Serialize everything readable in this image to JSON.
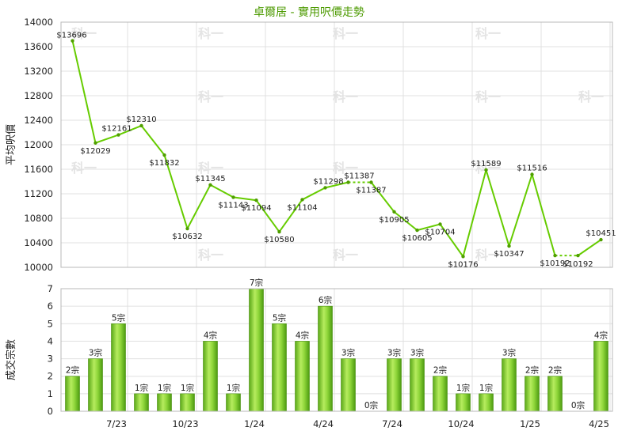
{
  "title": "卓爾居 - 實用呎價走勢",
  "chart_data": [
    {
      "type": "line",
      "ylabel": "平均呎價",
      "ylim": [
        10000,
        14000
      ],
      "yticks": [
        10000,
        10400,
        10800,
        11200,
        11600,
        12000,
        12400,
        12800,
        13200,
        13600,
        14000
      ],
      "points": [
        {
          "value": 13696,
          "label": "$13696"
        },
        {
          "value": 12029,
          "label": "$12029"
        },
        {
          "value": 12161,
          "label": "$12161"
        },
        {
          "value": 12310,
          "label": "$12310"
        },
        {
          "value": 11832,
          "label": "$11832"
        },
        {
          "value": 10632,
          "label": "$10632"
        },
        {
          "value": 11345,
          "label": "$11345"
        },
        {
          "value": 11143,
          "label": "$11143"
        },
        {
          "value": 11094,
          "label": "$11094"
        },
        {
          "value": 10580,
          "label": "$10580"
        },
        {
          "value": 11104,
          "label": "$11104"
        },
        {
          "value": 11298,
          "label": "$11298"
        },
        {
          "value": 11387,
          "label": "$11387"
        },
        {
          "value": 11387,
          "label": "$11387"
        },
        {
          "value": 10905,
          "label": "$10905"
        },
        {
          "value": 10605,
          "label": "$10605"
        },
        {
          "value": 10704,
          "label": "$10704"
        },
        {
          "value": 10176,
          "label": "$10176"
        },
        {
          "value": 11589,
          "label": "$11589"
        },
        {
          "value": 10347,
          "label": "$10347"
        },
        {
          "value": 11516,
          "label": "$11516"
        },
        {
          "value": 10192,
          "label": "$10192"
        },
        {
          "value": 10192,
          "label": "$10192"
        },
        {
          "value": 10451,
          "label": "$10451"
        }
      ],
      "line_color": "#66cc00"
    },
    {
      "type": "bar",
      "ylabel": "成交宗數",
      "ylim": [
        0,
        7
      ],
      "yticks": [
        0,
        1,
        2,
        3,
        4,
        5,
        6,
        7
      ],
      "values": [
        2,
        3,
        5,
        1,
        1,
        1,
        4,
        1,
        7,
        5,
        4,
        6,
        3,
        0,
        3,
        3,
        2,
        1,
        1,
        3,
        2,
        2,
        0,
        4
      ],
      "value_labels": [
        "2宗",
        "3宗",
        "5宗",
        "1宗",
        "1宗",
        "1宗",
        "4宗",
        "1宗",
        "7宗",
        "5宗",
        "4宗",
        "6宗",
        "3宗",
        "0宗",
        "3宗",
        "3宗",
        "2宗",
        "1宗",
        "1宗",
        "3宗",
        "2宗",
        "2宗",
        "0宗",
        "4宗"
      ],
      "bar_color": "#66bb22"
    }
  ],
  "x_axis": {
    "tick_labels": [
      "7/23",
      "10/23",
      "1/24",
      "4/24",
      "7/24",
      "10/24",
      "1/25",
      "4/25"
    ]
  },
  "watermark": {
    "text": "科一"
  }
}
